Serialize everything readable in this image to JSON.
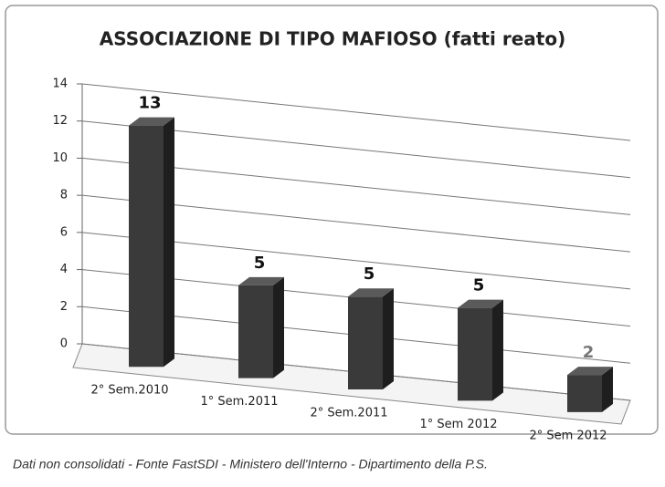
{
  "chart_data": {
    "type": "bar3d",
    "title": "ASSOCIAZIONE DI TIPO MAFIOSO (fatti reato)",
    "categories": [
      "2° Sem.2010",
      "1° Sem.2011",
      "2° Sem.2011",
      "1° Sem 2012",
      "2° Sem 2012"
    ],
    "values": [
      13,
      5,
      5,
      5,
      2
    ],
    "value_label_colors": [
      "#111111",
      "#111111",
      "#111111",
      "#111111",
      "#777777"
    ],
    "color": "#3a3a3a",
    "ylim": [
      0,
      14
    ],
    "yticks": [
      0,
      2,
      4,
      6,
      8,
      10,
      12,
      14
    ],
    "grid": true,
    "source": "Dati non consolidati - Fonte FastSDI - Ministero dell'Interno - Dipartimento della P.S."
  }
}
